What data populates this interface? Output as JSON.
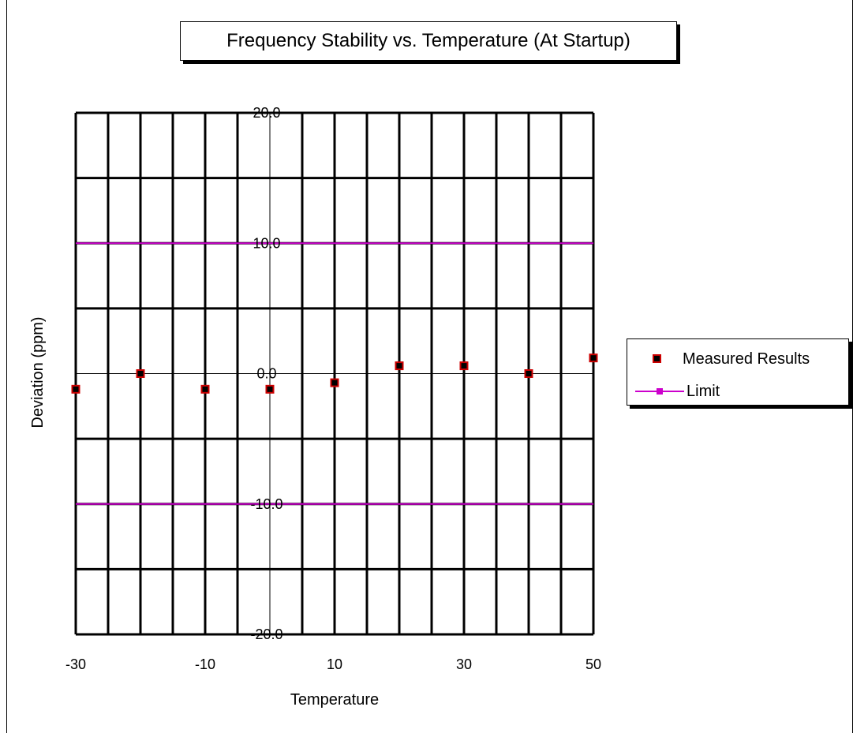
{
  "chart_data": {
    "type": "scatter",
    "title": "Frequency Stability vs. Temperature (At Startup)",
    "xlabel": "Temperature",
    "ylabel": "Deviation (ppm)",
    "xlim": [
      -30,
      50
    ],
    "ylim": [
      -20,
      20
    ],
    "x_ticks": [
      "-30",
      "-10",
      "10",
      "30",
      "50"
    ],
    "y_ticks": [
      "20.0",
      "10.0",
      "0.0",
      "-10.0",
      "-20.0"
    ],
    "grid": true,
    "legend_position": "right",
    "series": [
      {
        "name": "Measured Results",
        "marker_color": "#000000",
        "marker_edge_color": "#cc0000",
        "points": [
          {
            "x": -30,
            "y": -1.2
          },
          {
            "x": -20,
            "y": 0.0
          },
          {
            "x": -10,
            "y": -1.2
          },
          {
            "x": 0,
            "y": -1.2
          },
          {
            "x": 10,
            "y": -0.7
          },
          {
            "x": 20,
            "y": 0.6
          },
          {
            "x": 30,
            "y": 0.6
          },
          {
            "x": 40,
            "y": 0.0
          },
          {
            "x": 50,
            "y": 1.2
          }
        ]
      },
      {
        "name": "Limit",
        "color": "#cc00cc",
        "upper": 10,
        "lower": -10
      }
    ]
  }
}
